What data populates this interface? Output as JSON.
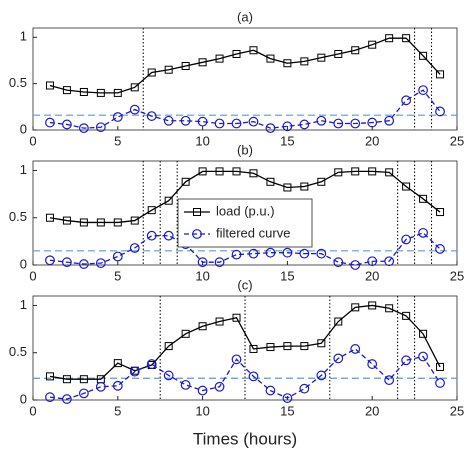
{
  "chart_data": [
    {
      "type": "line",
      "title": "(a)",
      "x": [
        1,
        2,
        3,
        4,
        5,
        6,
        7,
        8,
        9,
        10,
        11,
        12,
        13,
        14,
        15,
        16,
        17,
        18,
        19,
        20,
        21,
        22,
        23,
        24
      ],
      "series": [
        {
          "color": "#000000",
          "marker": "square",
          "values": [
            0.48,
            0.43,
            0.41,
            0.4,
            0.4,
            0.46,
            0.62,
            0.65,
            0.69,
            0.73,
            0.77,
            0.82,
            0.86,
            0.77,
            0.72,
            0.74,
            0.78,
            0.82,
            0.86,
            0.92,
            0.99,
            0.99,
            0.8,
            0.6
          ]
        },
        {
          "color": "#1a1ad0",
          "marker": "circle",
          "dashed": true,
          "values": [
            0.08,
            0.06,
            0.02,
            0.03,
            0.14,
            0.22,
            0.15,
            0.1,
            0.1,
            0.09,
            0.07,
            0.07,
            0.09,
            0.02,
            0.04,
            0.06,
            0.1,
            0.07,
            0.07,
            0.08,
            0.1,
            0.32,
            0.43,
            0.2
          ]
        }
      ],
      "threshold": 0.16,
      "threshold_color": "#5b9bd5",
      "vlines": [
        6.5,
        22.5,
        23.5
      ],
      "xlim": [
        0,
        25
      ],
      "xticks": [
        0,
        5,
        10,
        15,
        20,
        25
      ],
      "ylim": [
        0,
        1.1
      ],
      "yticks": [
        0,
        0.5,
        1
      ]
    },
    {
      "type": "line",
      "title": "(b)",
      "x": [
        1,
        2,
        3,
        4,
        5,
        6,
        7,
        8,
        9,
        10,
        11,
        12,
        13,
        14,
        15,
        16,
        17,
        18,
        19,
        20,
        21,
        22,
        23,
        24
      ],
      "series": [
        {
          "name": "load (p.u.)",
          "color": "#000000",
          "marker": "square",
          "values": [
            0.5,
            0.47,
            0.45,
            0.45,
            0.45,
            0.47,
            0.58,
            0.68,
            0.88,
            0.99,
            0.99,
            0.99,
            0.97,
            0.88,
            0.82,
            0.83,
            0.88,
            0.98,
            0.99,
            0.99,
            0.98,
            0.83,
            0.7,
            0.56
          ]
        },
        {
          "name": "filtered curve",
          "color": "#1a1ad0",
          "marker": "circle",
          "dashed": true,
          "values": [
            0.05,
            0.03,
            0.01,
            0.02,
            0.09,
            0.18,
            0.31,
            0.31,
            0.22,
            0.03,
            0.03,
            0.11,
            0.12,
            0.13,
            0.13,
            0.12,
            0.12,
            0.03,
            0.0,
            0.04,
            0.04,
            0.27,
            0.34,
            0.17
          ]
        }
      ],
      "threshold": 0.15,
      "threshold_color": "#5b9bd5",
      "vlines": [
        6.5,
        7.5,
        8.5,
        21.5,
        22.5,
        23.5
      ],
      "xlim": [
        0,
        25
      ],
      "xticks": [
        0,
        5,
        10,
        15,
        20,
        25
      ],
      "ylim": [
        0,
        1.1
      ],
      "yticks": [
        0,
        0.5,
        1
      ],
      "legend": "center"
    },
    {
      "type": "line",
      "title": "(c)",
      "x_label": "Times (hours)",
      "x": [
        1,
        2,
        3,
        4,
        5,
        6,
        7,
        8,
        9,
        10,
        11,
        12,
        13,
        14,
        15,
        16,
        17,
        18,
        19,
        20,
        21,
        22,
        23,
        24
      ],
      "series": [
        {
          "color": "#000000",
          "marker": "square",
          "values": [
            0.25,
            0.22,
            0.22,
            0.22,
            0.39,
            0.31,
            0.37,
            0.57,
            0.7,
            0.78,
            0.83,
            0.87,
            0.54,
            0.56,
            0.57,
            0.57,
            0.6,
            0.83,
            0.98,
            1.0,
            0.97,
            0.89,
            0.7,
            0.35
          ]
        },
        {
          "color": "#1a1ad0",
          "marker": "circle",
          "dashed": true,
          "values": [
            0.03,
            0.01,
            0.07,
            0.14,
            0.15,
            0.3,
            0.38,
            0.26,
            0.16,
            0.1,
            0.14,
            0.43,
            0.25,
            0.1,
            0.02,
            0.12,
            0.26,
            0.44,
            0.54,
            0.38,
            0.21,
            0.42,
            0.46,
            0.18
          ]
        }
      ],
      "threshold": 0.23,
      "threshold_color": "#5b9bd5",
      "vlines": [
        7.5,
        12.5,
        17.5,
        21.5,
        22.5
      ],
      "xlim": [
        0,
        25
      ],
      "xticks": [
        0,
        5,
        10,
        15,
        20,
        25
      ],
      "ylim": [
        0,
        1.1
      ],
      "yticks": [
        0,
        0.5,
        1
      ]
    }
  ]
}
